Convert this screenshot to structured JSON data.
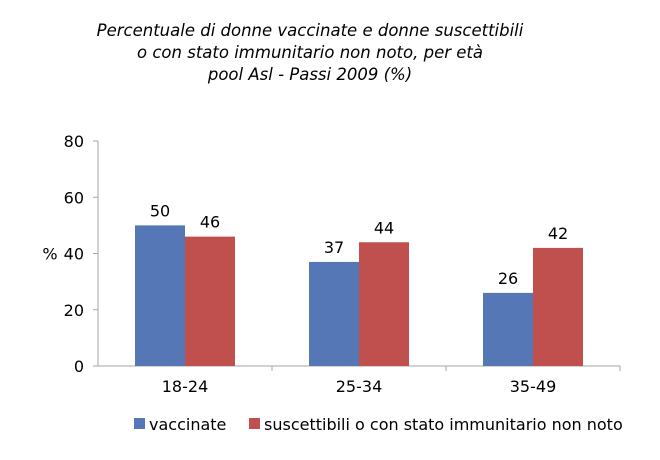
{
  "chart_data": {
    "type": "bar",
    "title": [
      "Percentuale di donne vaccinate e donne suscettibili",
      "o con stato immunitario non noto, per età",
      "pool Asl - Passi 2009 (%)"
    ],
    "ylabel": "%",
    "xlabel": "",
    "ylim": [
      0,
      80
    ],
    "yticks": [
      0,
      20,
      40,
      60,
      80
    ],
    "grid": false,
    "legend_position": "bottom",
    "categories": [
      "18-24",
      "25-34",
      "35-49"
    ],
    "series": [
      {
        "name": "vaccinate",
        "color": "#5677B6",
        "values": [
          50,
          37,
          26
        ]
      },
      {
        "name": "suscettibili o con stato immunitario non noto",
        "color": "#C0504D",
        "values": [
          46,
          44,
          42
        ]
      }
    ]
  }
}
